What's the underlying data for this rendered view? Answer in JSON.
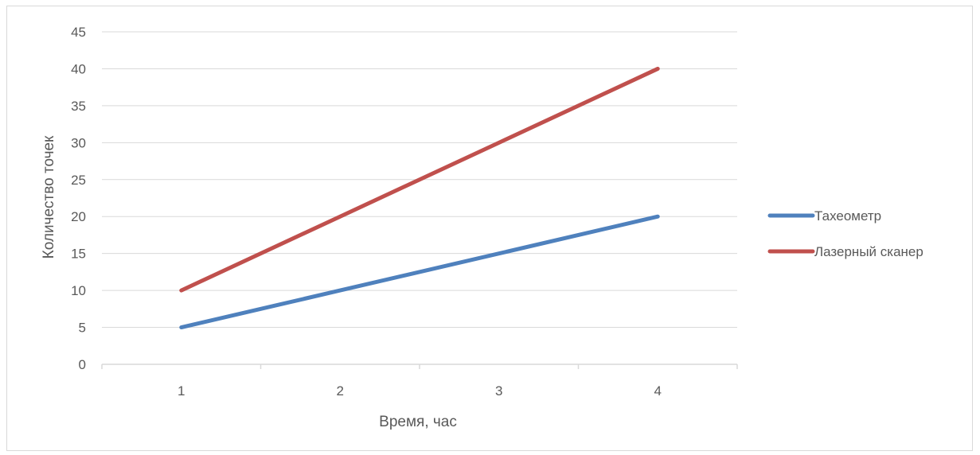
{
  "chart_data": {
    "type": "line",
    "title": "",
    "xlabel": "Время, час",
    "ylabel": "Количество точек",
    "categories": [
      "1",
      "2",
      "3",
      "4"
    ],
    "ylim": [
      0,
      45
    ],
    "yticks": [
      0,
      5,
      10,
      15,
      20,
      25,
      30,
      35,
      40,
      45
    ],
    "grid": true,
    "legend_position": "right",
    "series": [
      {
        "name": "Тахеометр",
        "values": [
          5,
          10,
          15,
          20
        ],
        "color": "#4f81bd"
      },
      {
        "name": "Лазерный сканер",
        "values": [
          10,
          20,
          30,
          40
        ],
        "color": "#c0504d"
      }
    ]
  }
}
